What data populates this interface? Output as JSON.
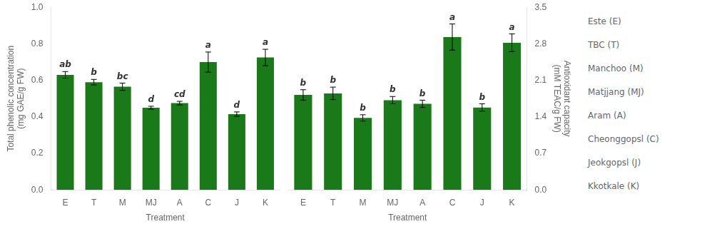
{
  "chart_data": [
    {
      "type": "bar",
      "categories": [
        "E",
        "T",
        "M",
        "MJ",
        "A",
        "C",
        "J",
        "K"
      ],
      "values": [
        0.63,
        0.59,
        0.565,
        0.45,
        0.475,
        0.7,
        0.415,
        0.725
      ],
      "errors": [
        0.018,
        0.015,
        0.02,
        0.008,
        0.01,
        0.055,
        0.012,
        0.045
      ],
      "letters": [
        "ab",
        "b",
        "bc",
        "d",
        "cd",
        "a",
        "d",
        "a"
      ],
      "color": "#1a7a1a",
      "ylabel": "Total phenolic concentration\n(mg GAE/g FW)",
      "xlabel": "Treatment",
      "ylim": [
        0.0,
        1.0
      ],
      "yticks": [
        {
          "value": 0.0,
          "label": "0.0"
        },
        0.2,
        0.4,
        0.6,
        0.8,
        {
          "value": 1.0,
          "label": "1.0"
        }
      ],
      "grid": false
    },
    {
      "type": "bar",
      "categories": [
        "E",
        "T",
        "M",
        "MJ",
        "A",
        "C",
        "J",
        "K"
      ],
      "values": [
        1.82,
        1.85,
        1.38,
        1.72,
        1.65,
        2.93,
        1.58,
        2.82
      ],
      "errors": [
        0.1,
        0.12,
        0.06,
        0.07,
        0.07,
        0.25,
        0.07,
        0.17
      ],
      "letters": [
        "b",
        "b",
        "b",
        "b",
        "b",
        "a",
        "b",
        "a"
      ],
      "color": "#1a7a1a",
      "ylabel": "Antioxidant capacity\n(mM TEAC/g FW)",
      "xlabel": "Treatment",
      "ylim": [
        0.0,
        3.5
      ],
      "yticks": [
        {
          "value": 0.0,
          "label": "0.0"
        },
        0.7,
        1.4,
        2.1,
        2.8,
        3.5
      ],
      "grid": false,
      "annotations": [
        "Este (E)",
        "TBC (T)",
        "Manchoo (M)",
        "Matjjang (MJ)",
        "Aram (A)",
        "Cheonggopsl (C)",
        "Jeokgopsl (J)",
        "Kkotkale (K)"
      ]
    }
  ]
}
